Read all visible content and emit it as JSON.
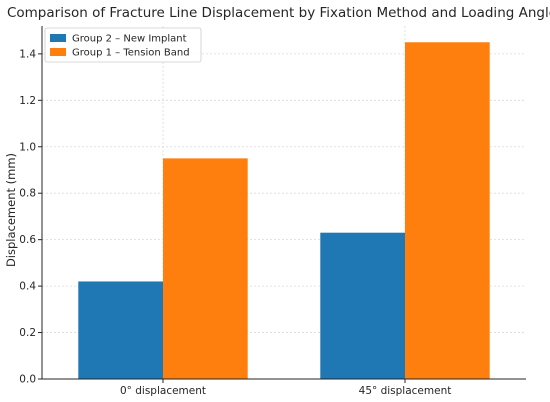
{
  "chart_data": {
    "type": "bar",
    "title": "Comparison of Fracture Line Displacement by Fixation Method and Loading Angle",
    "xlabel": "",
    "ylabel": "Displacement (mm)",
    "categories": [
      "0° displacement",
      "45° displacement"
    ],
    "series": [
      {
        "name": "Group 2 – New Implant",
        "values": [
          0.42,
          0.63
        ],
        "color": "#1f77b4"
      },
      {
        "name": "Group 1 – Tension Band",
        "values": [
          0.95,
          1.45
        ],
        "color": "#ff7f0e"
      }
    ],
    "ylim": [
      0,
      1.52
    ],
    "yticks": [
      0.0,
      0.2,
      0.4,
      0.6,
      0.8,
      1.0,
      1.2,
      1.4
    ],
    "grid": true,
    "legend": "top-left"
  }
}
